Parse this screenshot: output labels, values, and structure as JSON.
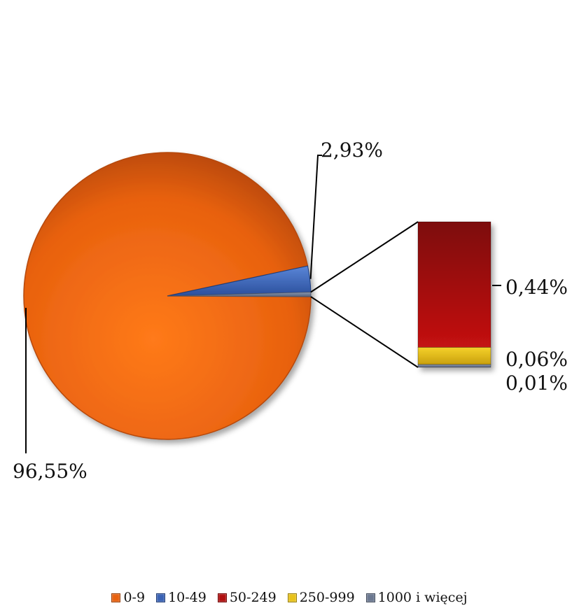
{
  "chart_data": {
    "type": "pie",
    "subtype": "bar-of-pie",
    "title": "",
    "categories": [
      "0-9",
      "10-49",
      "50-249",
      "250-999",
      "1000 i więcej"
    ],
    "values": [
      96.55,
      2.93,
      0.44,
      0.06,
      0.01
    ],
    "value_labels": [
      "96,55%",
      "2,93%",
      "0,44%",
      "0,06%",
      "0,01%"
    ],
    "colors": [
      "#e8610f",
      "#3a62b4",
      "#b01010",
      "#e8c21a",
      "#6b7890"
    ],
    "secondary_bar_categories": [
      "50-249",
      "250-999",
      "1000 i więcej"
    ],
    "legend_position": "bottom"
  }
}
